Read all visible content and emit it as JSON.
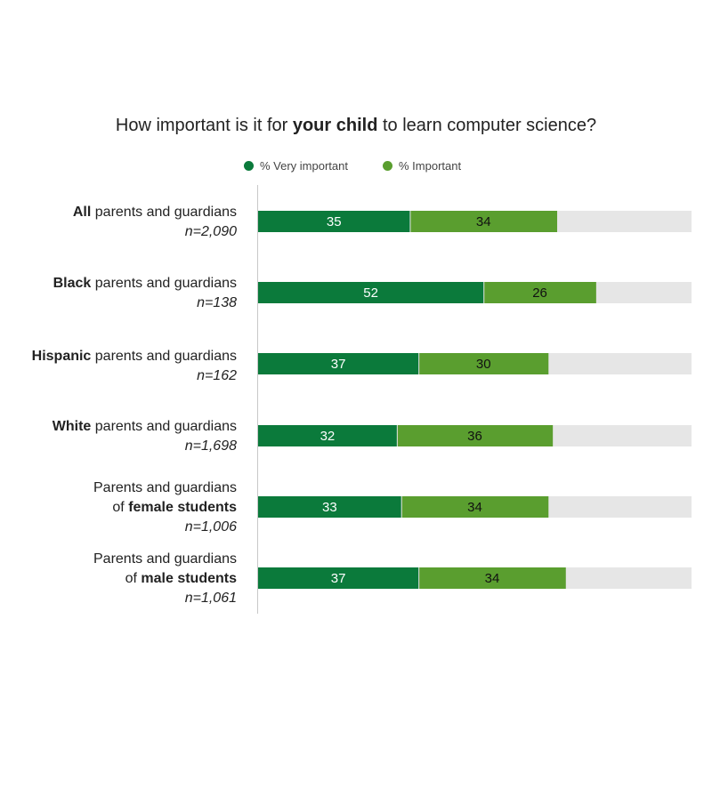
{
  "chart_data": {
    "type": "bar",
    "orientation": "horizontal",
    "stacked": true,
    "title": {
      "pre": "How important is it for ",
      "bold": "your child",
      "post": " to learn computer science?"
    },
    "legend": [
      {
        "name": "% Very important",
        "color": "#0b7a3b"
      },
      {
        "name": "% Important",
        "color": "#5a9e2f"
      }
    ],
    "xlim": [
      0,
      100
    ],
    "remainder_color": "#e6e6e6",
    "rows": [
      {
        "label_bold": "All",
        "label_rest": " parents and guardians",
        "label_line2_pre": "",
        "label_line2_bold": "",
        "n": "n=2,090",
        "very": 35,
        "important": 34
      },
      {
        "label_bold": "Black",
        "label_rest": " parents and guardians",
        "label_line2_pre": "",
        "label_line2_bold": "",
        "n": "n=138",
        "very": 52,
        "important": 26
      },
      {
        "label_bold": "Hispanic",
        "label_rest": " parents and guardians",
        "label_line2_pre": "",
        "label_line2_bold": "",
        "n": "n=162",
        "very": 37,
        "important": 30
      },
      {
        "label_bold": "White",
        "label_rest": " parents and guardians",
        "label_line2_pre": "",
        "label_line2_bold": "",
        "n": "n=1,698",
        "very": 32,
        "important": 36
      },
      {
        "label_bold": "",
        "label_rest": "Parents and guardians",
        "label_line2_pre": "of ",
        "label_line2_bold": "female students",
        "n": "n=1,006",
        "very": 33,
        "important": 34
      },
      {
        "label_bold": "",
        "label_rest": "Parents and guardians",
        "label_line2_pre": "of ",
        "label_line2_bold": "male students",
        "n": "n=1,061",
        "very": 37,
        "important": 34
      }
    ]
  }
}
